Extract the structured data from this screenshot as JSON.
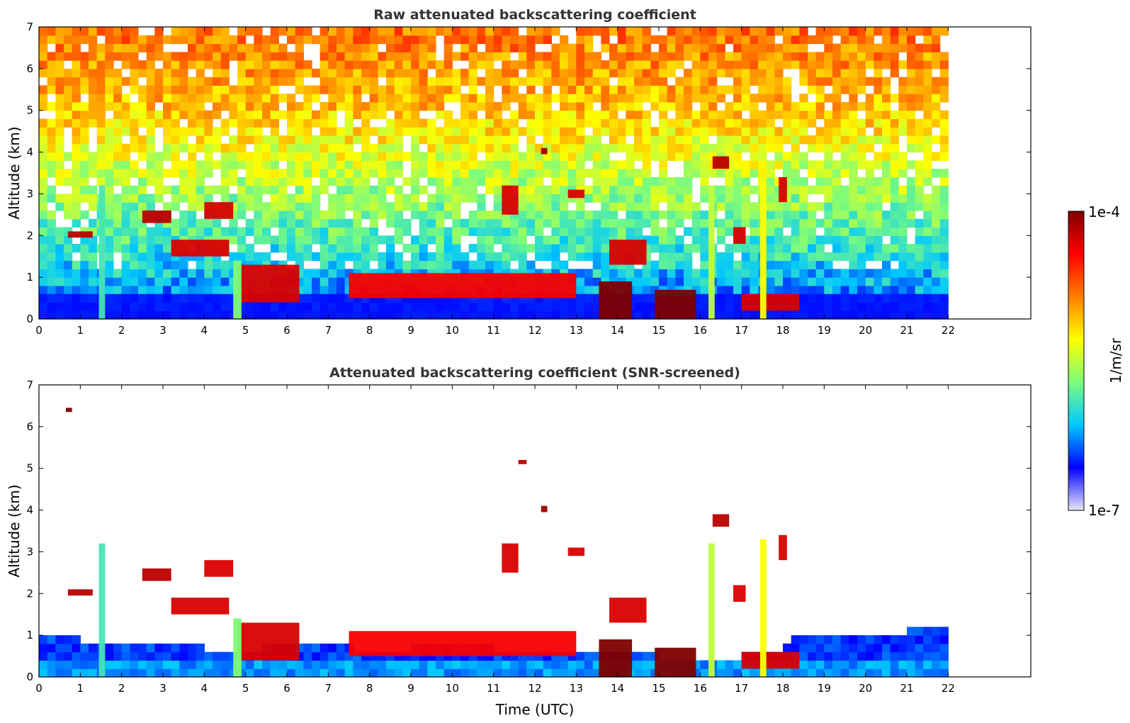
{
  "chart_data": [
    {
      "type": "heatmap",
      "title": "Raw attenuated backscattering coefficient",
      "xlabel": "",
      "ylabel": "Altitude (km)",
      "xlim": [
        0,
        24
      ],
      "ylim": [
        0,
        7
      ],
      "x_ticks": [
        0,
        1,
        2,
        3,
        4,
        5,
        6,
        7,
        8,
        9,
        10,
        11,
        12,
        13,
        14,
        15,
        16,
        17,
        18,
        19,
        20,
        21,
        22
      ],
      "y_ticks": [
        0,
        1,
        2,
        3,
        4,
        5,
        6,
        7
      ],
      "data_extent_x": [
        0,
        22
      ],
      "background_profile": [
        {
          "altitude": 0.0,
          "log10_value": -6.55
        },
        {
          "altitude": 0.5,
          "log10_value": -6.3
        },
        {
          "altitude": 1.5,
          "log10_value": -6.0
        },
        {
          "altitude": 3.0,
          "log10_value": -5.6
        },
        {
          "altitude": 5.0,
          "log10_value": -5.1
        },
        {
          "altitude": 7.0,
          "log10_value": -4.8
        }
      ],
      "features": [
        {
          "kind": "aerosol_layer",
          "x": [
            0,
            22
          ],
          "y": [
            0,
            0.6
          ],
          "log10_value": -6.55
        },
        {
          "kind": "cloud",
          "x": [
            0.7,
            1.3
          ],
          "y": [
            1.95,
            2.1
          ],
          "log10_value": -4.2
        },
        {
          "kind": "cloud",
          "x": [
            2.5,
            3.2
          ],
          "y": [
            2.3,
            2.6
          ],
          "log10_value": -4.2
        },
        {
          "kind": "cloud",
          "x": [
            3.2,
            4.6
          ],
          "y": [
            1.5,
            1.9
          ],
          "log10_value": -4.3
        },
        {
          "kind": "cloud",
          "x": [
            4.0,
            4.7
          ],
          "y": [
            2.4,
            2.8
          ],
          "log10_value": -4.3
        },
        {
          "kind": "cloud",
          "x": [
            4.8,
            6.3
          ],
          "y": [
            0.4,
            1.3
          ],
          "log10_value": -4.3
        },
        {
          "kind": "cloud",
          "x": [
            7.5,
            13.0
          ],
          "y": [
            0.5,
            1.1
          ],
          "log10_value": -4.4
        },
        {
          "kind": "cloud",
          "x": [
            11.2,
            11.6
          ],
          "y": [
            2.5,
            3.2
          ],
          "log10_value": -4.3
        },
        {
          "kind": "cloud",
          "x": [
            12.15,
            12.3
          ],
          "y": [
            3.95,
            4.1
          ],
          "log10_value": -4.1
        },
        {
          "kind": "cloud",
          "x": [
            12.8,
            13.2
          ],
          "y": [
            2.9,
            3.1
          ],
          "log10_value": -4.3
        },
        {
          "kind": "cloud",
          "x": [
            13.8,
            14.7
          ],
          "y": [
            1.3,
            1.9
          ],
          "log10_value": -4.3
        },
        {
          "kind": "cloud",
          "x": [
            13.55,
            14.35
          ],
          "y": [
            0.0,
            0.9
          ],
          "log10_value": -4.0
        },
        {
          "kind": "cloud",
          "x": [
            14.9,
            15.9
          ],
          "y": [
            0.0,
            0.7
          ],
          "log10_value": -4.0
        },
        {
          "kind": "cloud",
          "x": [
            16.3,
            16.7
          ],
          "y": [
            3.6,
            3.9
          ],
          "log10_value": -4.2
        },
        {
          "kind": "cloud",
          "x": [
            16.8,
            17.1
          ],
          "y": [
            1.8,
            2.2
          ],
          "log10_value": -4.3
        },
        {
          "kind": "cloud",
          "x": [
            17.9,
            18.1
          ],
          "y": [
            2.8,
            3.4
          ],
          "log10_value": -4.3
        },
        {
          "kind": "cloud",
          "x": [
            17.0,
            18.4
          ],
          "y": [
            0.2,
            0.6
          ],
          "log10_value": -4.3
        },
        {
          "kind": "plume",
          "x": [
            4.7,
            4.9
          ],
          "y": [
            0,
            1.4
          ],
          "log10_value": -5.7
        },
        {
          "kind": "plume",
          "x": [
            1.45,
            1.6
          ],
          "y": [
            0,
            3.2
          ],
          "log10_value": -5.9
        },
        {
          "kind": "plume",
          "x": [
            17.45,
            17.6
          ],
          "y": [
            0,
            3.3
          ],
          "log10_value": -5.3
        },
        {
          "kind": "plume",
          "x": [
            16.2,
            16.35
          ],
          "y": [
            0,
            3.2
          ],
          "log10_value": -5.5
        }
      ]
    },
    {
      "type": "heatmap",
      "title": "Attenuated backscattering coefficient (SNR-screened)",
      "xlabel": "Time (UTC)",
      "ylabel": "Altitude (km)",
      "xlim": [
        0,
        24
      ],
      "ylim": [
        0,
        7
      ],
      "x_ticks": [
        0,
        1,
        2,
        3,
        4,
        5,
        6,
        7,
        8,
        9,
        10,
        11,
        12,
        13,
        14,
        15,
        16,
        17,
        18,
        19,
        20,
        21,
        22
      ],
      "y_ticks": [
        0,
        1,
        2,
        3,
        4,
        5,
        6,
        7
      ],
      "data_extent_x": [
        0,
        22
      ],
      "screened_top": [
        {
          "x": 0,
          "y": 0.95
        },
        {
          "x": 1,
          "y": 0.9
        },
        {
          "x": 2,
          "y": 0.7
        },
        {
          "x": 3,
          "y": 0.75
        },
        {
          "x": 4,
          "y": 0.7
        },
        {
          "x": 5,
          "y": 0.65
        },
        {
          "x": 6,
          "y": 0.8
        },
        {
          "x": 7,
          "y": 0.8
        },
        {
          "x": 8,
          "y": 0.65
        },
        {
          "x": 9,
          "y": 0.7
        },
        {
          "x": 10,
          "y": 0.75
        },
        {
          "x": 11,
          "y": 0.7
        },
        {
          "x": 12,
          "y": 0.6
        },
        {
          "x": 13,
          "y": 0.55
        },
        {
          "x": 14,
          "y": 0.55
        },
        {
          "x": 15,
          "y": 0.5
        },
        {
          "x": 16,
          "y": 0.45
        },
        {
          "x": 17,
          "y": 0.5
        },
        {
          "x": 18,
          "y": 0.6
        },
        {
          "x": 18.5,
          "y": 1.1
        },
        {
          "x": 19,
          "y": 1.05
        },
        {
          "x": 20,
          "y": 1.0
        },
        {
          "x": 21,
          "y": 1.1
        },
        {
          "x": 22,
          "y": 1.3
        }
      ],
      "features": [
        {
          "kind": "cloud",
          "x": [
            0.7,
            1.3
          ],
          "y": [
            1.95,
            2.1
          ],
          "log10_value": -4.2
        },
        {
          "kind": "cloud",
          "x": [
            2.5,
            3.2
          ],
          "y": [
            2.3,
            2.6
          ],
          "log10_value": -4.2
        },
        {
          "kind": "cloud",
          "x": [
            3.2,
            4.6
          ],
          "y": [
            1.5,
            1.9
          ],
          "log10_value": -4.3
        },
        {
          "kind": "cloud",
          "x": [
            4.0,
            4.7
          ],
          "y": [
            2.4,
            2.8
          ],
          "log10_value": -4.3
        },
        {
          "kind": "cloud",
          "x": [
            4.8,
            6.3
          ],
          "y": [
            0.4,
            1.3
          ],
          "log10_value": -4.3
        },
        {
          "kind": "cloud",
          "x": [
            7.5,
            13.0
          ],
          "y": [
            0.5,
            1.1
          ],
          "log10_value": -4.4
        },
        {
          "kind": "cloud",
          "x": [
            11.2,
            11.6
          ],
          "y": [
            2.5,
            3.2
          ],
          "log10_value": -4.3
        },
        {
          "kind": "cloud",
          "x": [
            12.15,
            12.3
          ],
          "y": [
            3.95,
            4.1
          ],
          "log10_value": -4.1
        },
        {
          "kind": "cloud",
          "x": [
            12.8,
            13.2
          ],
          "y": [
            2.9,
            3.1
          ],
          "log10_value": -4.3
        },
        {
          "kind": "cloud",
          "x": [
            13.8,
            14.7
          ],
          "y": [
            1.3,
            1.9
          ],
          "log10_value": -4.3
        },
        {
          "kind": "cloud",
          "x": [
            13.55,
            14.35
          ],
          "y": [
            0.0,
            0.9
          ],
          "log10_value": -4.0
        },
        {
          "kind": "cloud",
          "x": [
            14.9,
            15.9
          ],
          "y": [
            0.0,
            0.7
          ],
          "log10_value": -4.0
        },
        {
          "kind": "cloud",
          "x": [
            16.3,
            16.7
          ],
          "y": [
            3.6,
            3.9
          ],
          "log10_value": -4.2
        },
        {
          "kind": "cloud",
          "x": [
            16.8,
            17.1
          ],
          "y": [
            1.8,
            2.2
          ],
          "log10_value": -4.3
        },
        {
          "kind": "cloud",
          "x": [
            17.9,
            18.1
          ],
          "y": [
            2.8,
            3.4
          ],
          "log10_value": -4.3
        },
        {
          "kind": "cloud",
          "x": [
            17.0,
            18.4
          ],
          "y": [
            0.2,
            0.6
          ],
          "log10_value": -4.3
        },
        {
          "kind": "cloud",
          "x": [
            0.65,
            0.8
          ],
          "y": [
            6.35,
            6.45
          ],
          "log10_value": -4.0
        },
        {
          "kind": "cloud",
          "x": [
            11.6,
            11.8
          ],
          "y": [
            5.1,
            5.2
          ],
          "log10_value": -4.2
        },
        {
          "kind": "plume",
          "x": [
            4.7,
            4.9
          ],
          "y": [
            0,
            1.4
          ],
          "log10_value": -5.7
        },
        {
          "kind": "plume",
          "x": [
            1.45,
            1.6
          ],
          "y": [
            0,
            3.2
          ],
          "log10_value": -5.9
        },
        {
          "kind": "plume",
          "x": [
            17.45,
            17.6
          ],
          "y": [
            0,
            3.3
          ],
          "log10_value": -5.3
        },
        {
          "kind": "plume",
          "x": [
            16.2,
            16.35
          ],
          "y": [
            0,
            3.2
          ],
          "log10_value": -5.5
        }
      ]
    }
  ],
  "colorbar": {
    "label": "1/m/sr",
    "max_label": "1e-4",
    "min_label": "1e-7",
    "log10_range": [
      -7,
      -4
    ],
    "colors": [
      "#e6e6fa",
      "#0000ff",
      "#00c8ff",
      "#7cfc7c",
      "#ffff00",
      "#ff7f00",
      "#ff0000",
      "#800000"
    ]
  }
}
